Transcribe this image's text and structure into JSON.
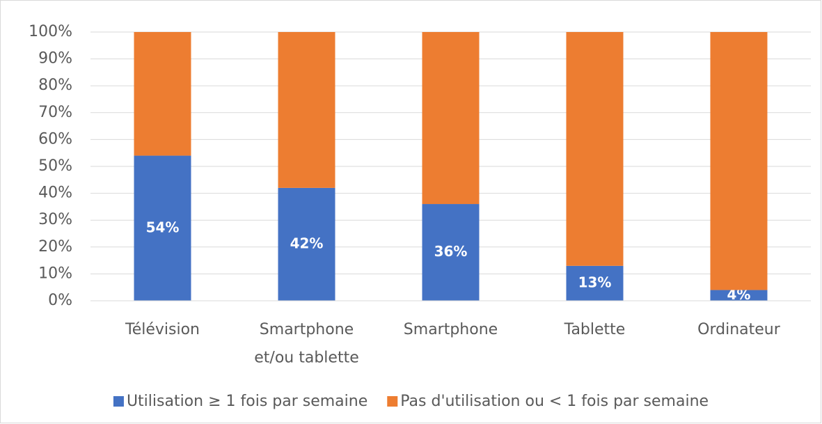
{
  "chart_data": {
    "type": "stacked_bar",
    "categories": [
      "Télévision",
      "Smartphone\net/ou tablette",
      "Smartphone",
      "Tablette",
      "Ordinateur"
    ],
    "series": [
      {
        "name": "Utilisation ≥ 1 fois par semaine",
        "color": "#4472c4",
        "values": [
          54,
          42,
          36,
          13,
          4
        ],
        "value_labels": [
          "54%",
          "42%",
          "36%",
          "13%",
          "4%"
        ]
      },
      {
        "name": "Pas d'utilisation ou < 1 fois par semaine",
        "color": "#ed7d31",
        "values": [
          46,
          58,
          64,
          87,
          96
        ]
      }
    ],
    "ylim": [
      0,
      100
    ],
    "yticks": [
      {
        "value": 0,
        "label": "0%"
      },
      {
        "value": 10,
        "label": "10%"
      },
      {
        "value": 20,
        "label": "20%"
      },
      {
        "value": 30,
        "label": "30%"
      },
      {
        "value": 40,
        "label": "40%"
      },
      {
        "value": 50,
        "label": "50%"
      },
      {
        "value": 60,
        "label": "60%"
      },
      {
        "value": 70,
        "label": "70%"
      },
      {
        "value": 80,
        "label": "80%"
      },
      {
        "value": 90,
        "label": "90%"
      },
      {
        "value": 100,
        "label": "100%"
      }
    ],
    "grid": true,
    "legend": "bottom"
  }
}
